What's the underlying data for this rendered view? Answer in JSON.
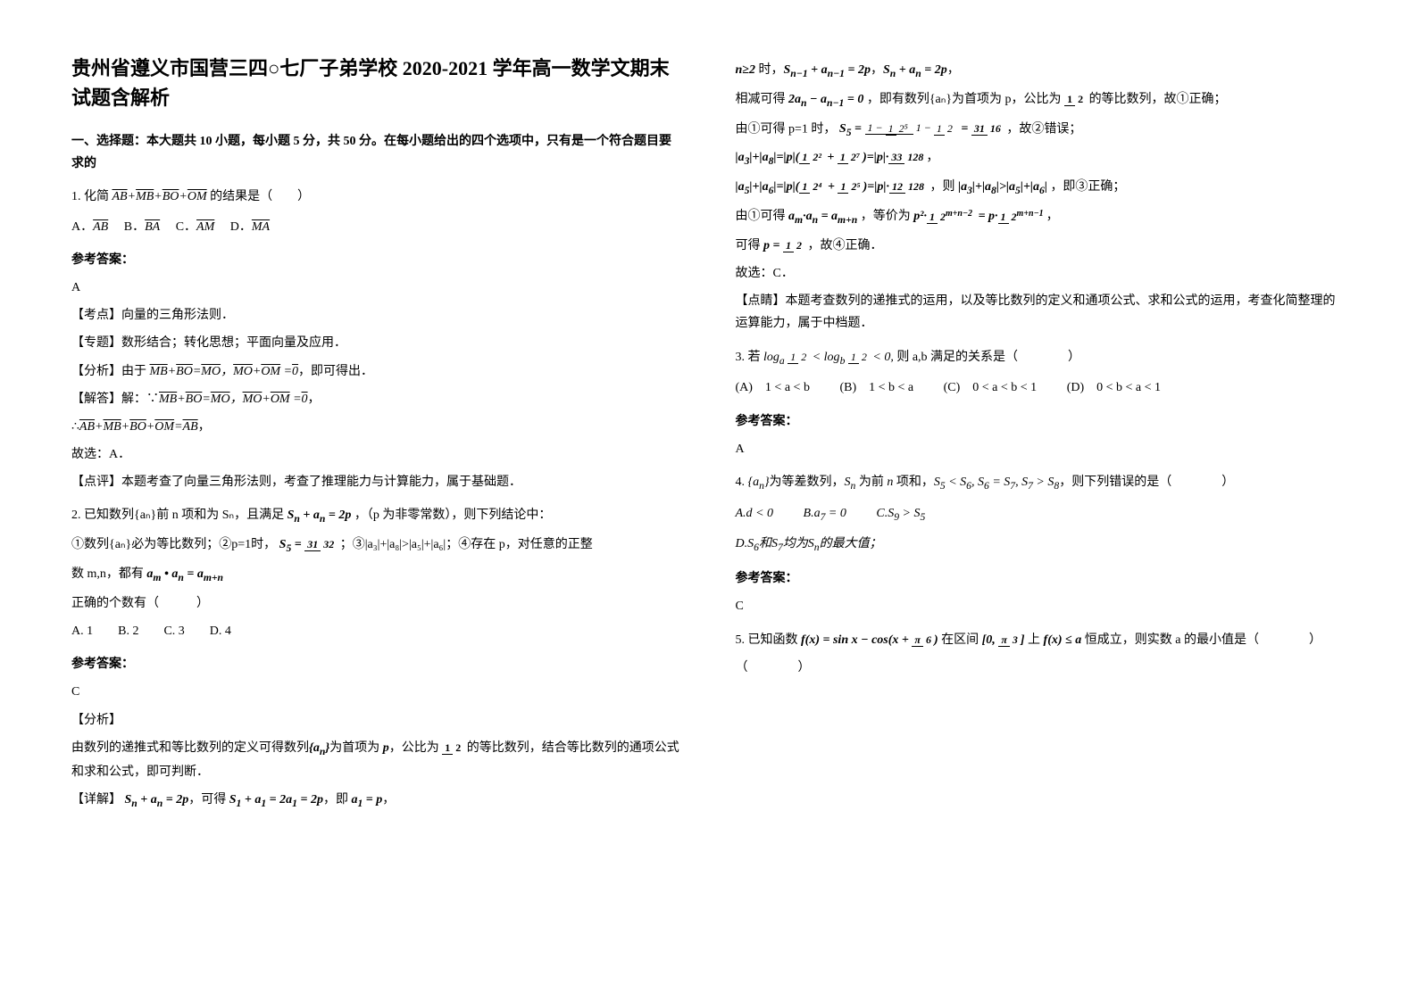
{
  "title": "贵州省遵义市国营三四○七厂子弟学校 2020-2021 学年高一数学文期末试题含解析",
  "section1_title": "一、选择题：本大题共 10 小题，每小题 5 分，共 50 分。在每小题给出的四个选项中，只有是一个符合题目要求的",
  "q1": {
    "stem": "1. 化简",
    "formula": "AB+MB+BO+OM",
    "tail": "的结果是（　　）",
    "options": {
      "A": "A．AB",
      "B": "B．BA",
      "C": "C．AM",
      "D": "D．MA"
    },
    "answer_label": "参考答案：",
    "answer": "A",
    "kaodian_label": "【考点】",
    "kaodian": "向量的三角形法则．",
    "zhuanti_label": "【专题】",
    "zhuanti": "数形结合；转化思想；平面向量及应用．",
    "fenxi_label": "【分析】",
    "fenxi": "由于 MB+BO=MO，MO+OM =0，即可得出．",
    "jieda_label": "【解答】",
    "jieda1": "解：∵MB+BO=MO，MO+OM =0，",
    "jieda2": "∴AB+MB+BO+OM=AB，",
    "jieda3": "故选：A．",
    "dianping_label": "【点评】",
    "dianping": "本题考查了向量三角形法则，考查了推理能力与计算能力，属于基础题．"
  },
  "q2": {
    "stem": "2. 已知数列{aₙ}前 n 项和为 Sₙ，且满足",
    "formula1": "Sₙ + aₙ = 2p",
    "tail1": "，（p 为非零常数），则下列结论中：",
    "item1": "①数列{aₙ}必为等比数列；②p=1时，",
    "item1_formula": "S₅ = 31/32",
    "item1_tail": "；③|a₃|+|a₈|>|a₅|+|a₆|；④存在 p，对任意的正整",
    "item2": "数 m,n，都有",
    "item2_formula": "aₘ • aₙ = aₘ₊ₙ",
    "correct_count": "正确的个数有（　　　）",
    "options": "A. 1　　B. 2　　C. 3　　D. 4",
    "answer_label": "参考答案：",
    "answer": "C",
    "fenxi_label": "【分析】",
    "fenxi": "由数列的递推式和等比数列的定义可得数列{aₙ}为首项为 p，公比为 1/2 的等比数列，结合等比数列的通项公式和求和公式，即可判断．",
    "xiangjie_label": "【详解】",
    "xiangjie": "Sₙ + aₙ = 2p，可得 S₁ + a₁ = 2a₁ = 2p，即 a₁ = p，"
  },
  "col2": {
    "line1_pre": "n≥2 时，",
    "line1_f1": "Sₙ₋₁ + aₙ₋₁ = 2p",
    "line1_f2": "Sₙ + aₙ = 2p",
    "line2_pre": "相减可得",
    "line2_f1": "2aₙ − aₙ₋₁ = 0",
    "line2_mid": "，即有数列{aₙ}为首项为 p，公比为",
    "line2_frac": "1/2",
    "line2_tail": "的等比数列，故①正确；",
    "line3_pre": "由①可得 p=1 时，",
    "line3_tail": "，故②错误；",
    "line4": "|a₃|+|a₈|=|p|(1/2² + 1/2⁷)=|p|·33/128，",
    "line5_pre": "|a₅|+|a₆|=|p|(1/2⁴ + 1/2⁵)=|p|·12/128",
    "line5_mid": "，则",
    "line5_f": "|a₃|+|a₈|>|a₅|+|a₆|",
    "line5_tail": "，即③正确；",
    "line6_pre": "由①可得",
    "line6_f1": "aₘ·aₙ = aₘ₊ₙ",
    "line6_mid": "，等价为",
    "line6_f2": "p²·1/2ᵐ⁺ⁿ⁻² = p·1/2ᵐ⁺ⁿ⁻¹",
    "line7_pre": "可得",
    "line7_f": "p = 1/2",
    "line7_tail": "，故④正确．",
    "line8": "故选：C．",
    "dianping_label": "【点睛】",
    "dianping": "本题考查数列的递推式的运用，以及等比数列的定义和通项公式、求和公式的运用，考查化简整理的运算能力，属于中档题．"
  },
  "q3": {
    "stem_pre": "3. 若",
    "stem_f": "logₐ 1/2 < log_b 1/2 < 0,",
    "stem_mid": "则 a,b 满足的关系是（　　　　）",
    "options": {
      "A": "(A)　1 < a < b",
      "B": "(B)　1 < b < a",
      "C": "(C)　0 < a < b < 1",
      "D": "(D)　0 < b < a < 1"
    },
    "answer_label": "参考答案：",
    "answer": "A"
  },
  "q4": {
    "stem": "4. {aₙ}为等差数列，Sₙ 为前 n 项和，S₅ < S₆, S₆ = S₇, S₇ > S₈，则下列错误的是（　　　　）",
    "options": {
      "A": "A.d < 0",
      "B": "B.a₇ = 0",
      "C": "C.S₉ > S₅",
      "D": "D.S₆和S₇均为Sₙ的最大值；"
    },
    "answer_label": "参考答案：",
    "answer": "C"
  },
  "q5": {
    "stem_pre": "5. 已知函数",
    "stem_f": "f(x) = sin x − cos(x + π/6)",
    "stem_mid": "在区间",
    "stem_int": "[0, π/3]",
    "stem_mid2": "上",
    "stem_cond": "f(x) ≤ a",
    "stem_tail": "恒成立，则实数 a 的最小值是（　　　　）"
  }
}
